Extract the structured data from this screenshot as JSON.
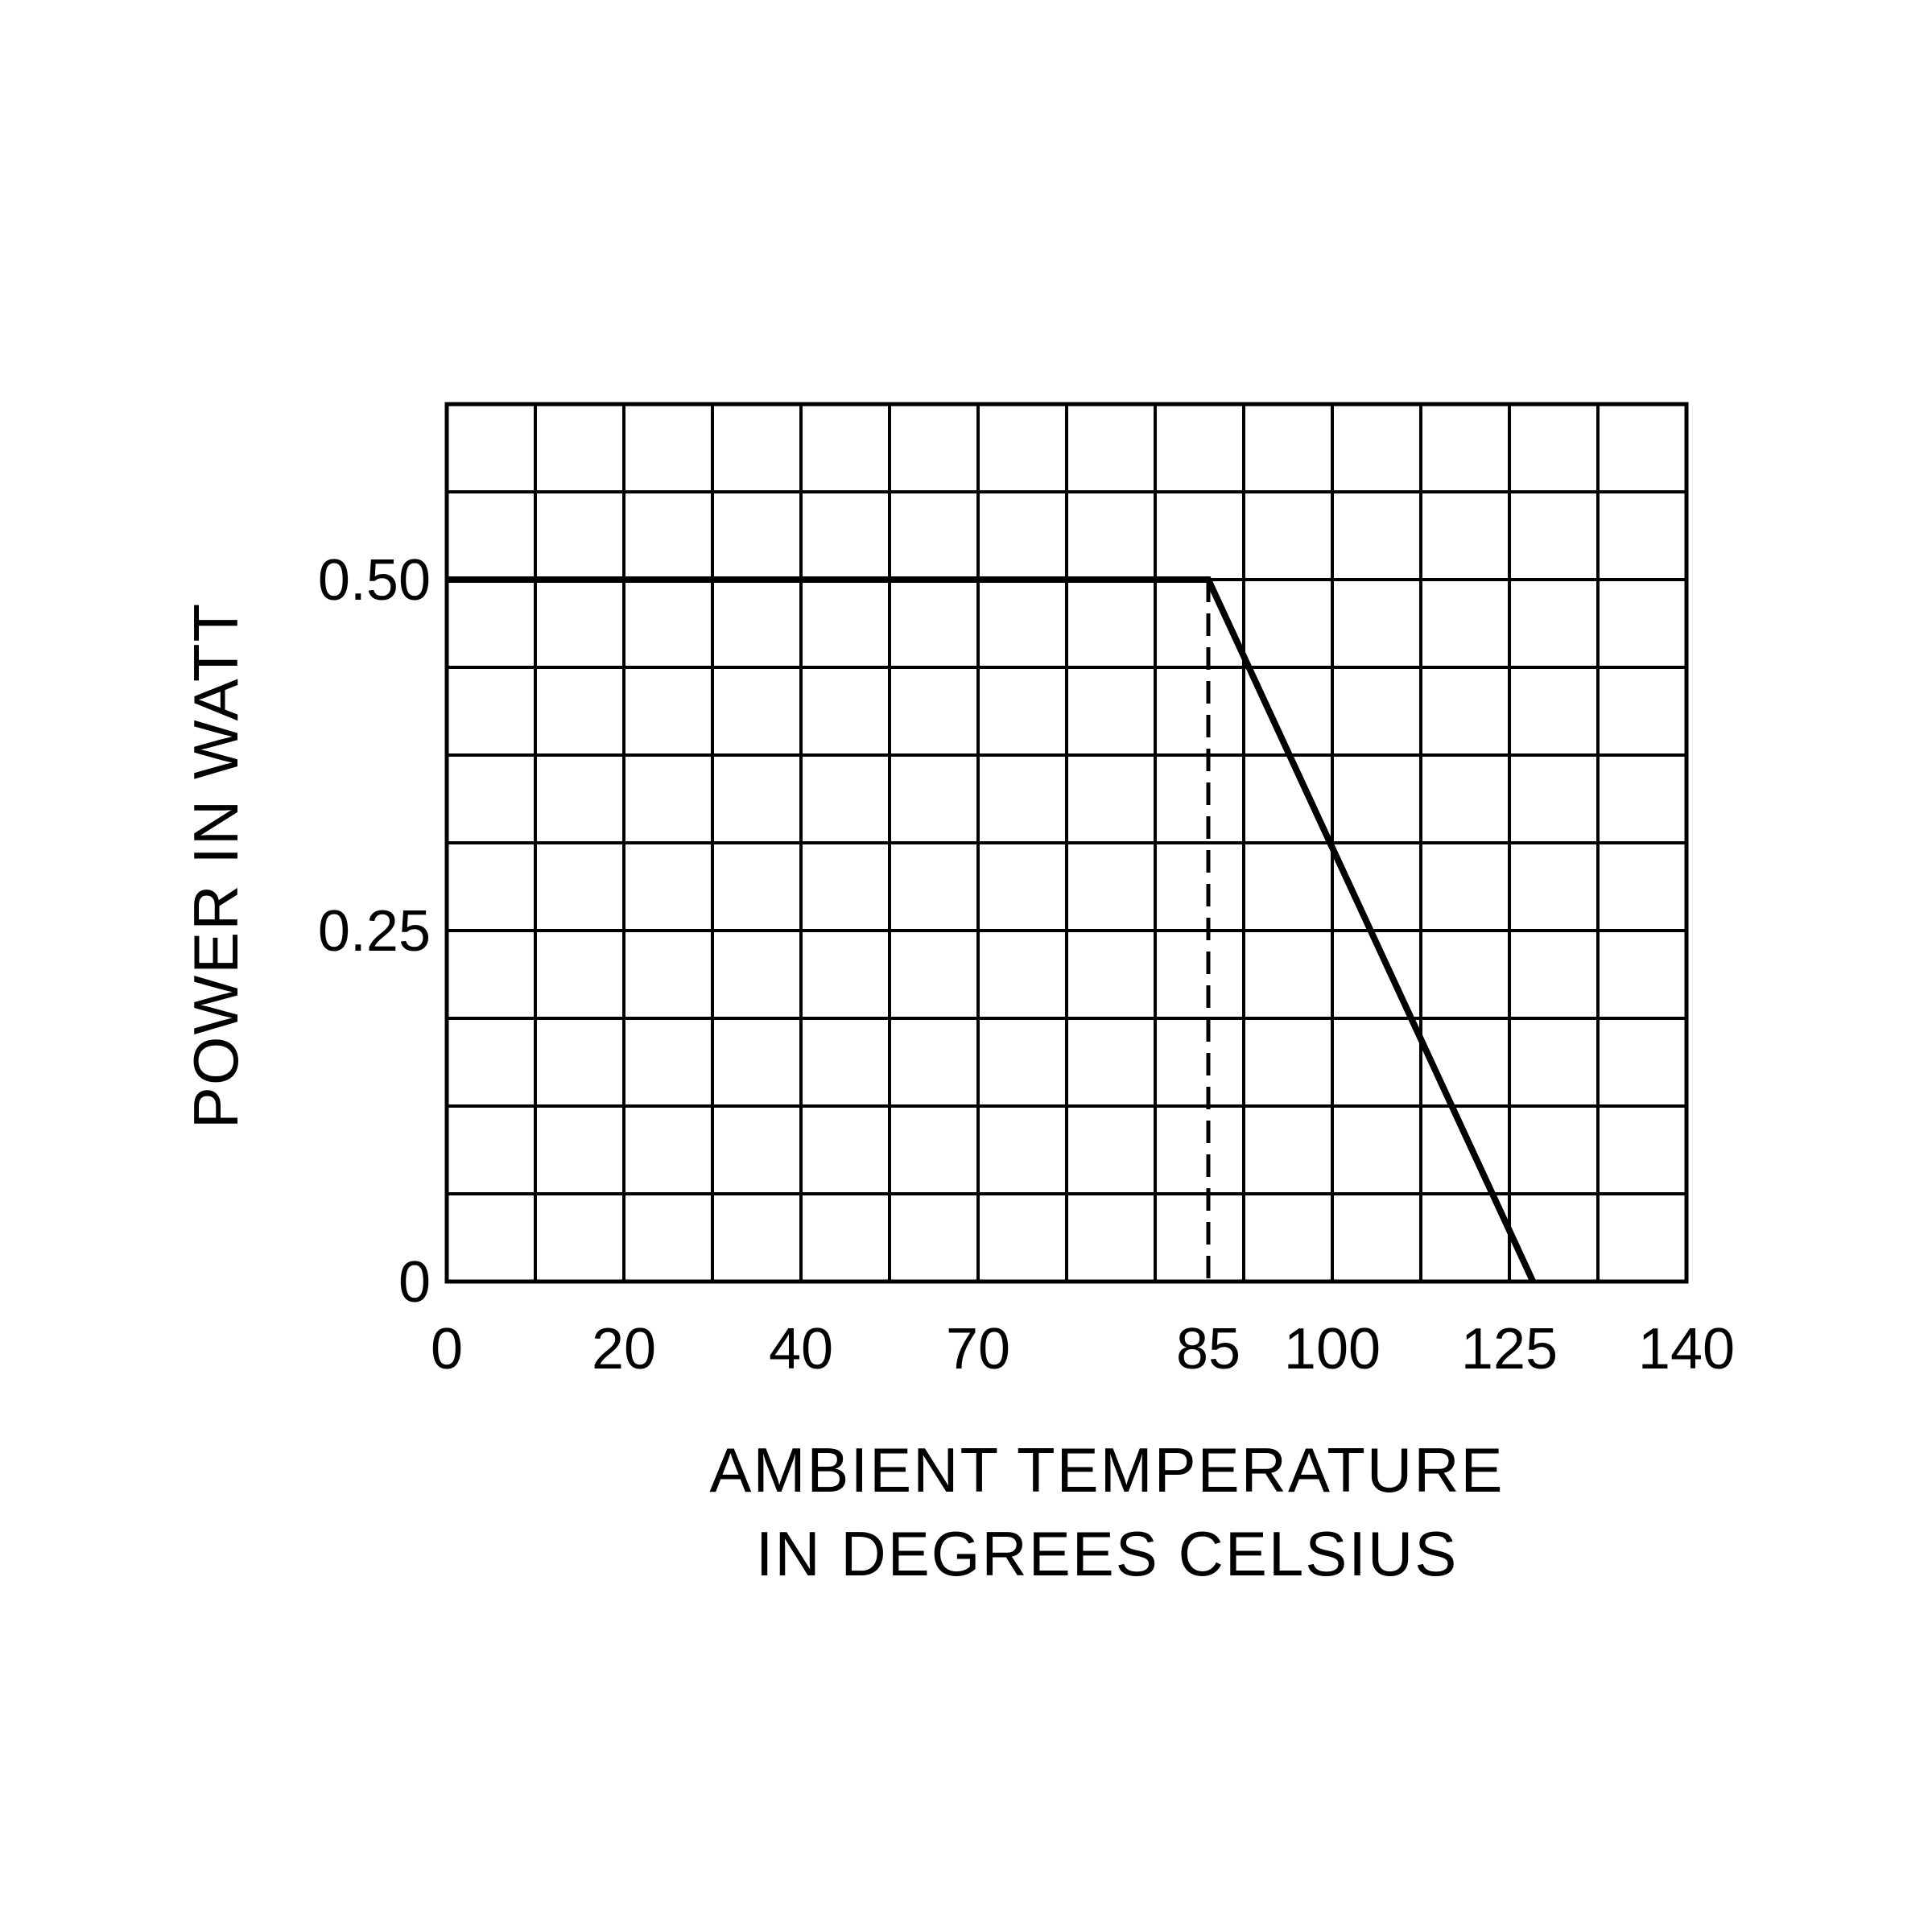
{
  "chart_data": {
    "type": "line",
    "xlabel": [
      "AMBIENT TEMPERATURE",
      "IN DEGREES CELSIUS"
    ],
    "ylabel": "POWER IN WATT",
    "x_tick_labels": [
      "0",
      "20",
      "40",
      "70",
      "85",
      "100",
      "125",
      "140"
    ],
    "y_tick_labels": [
      {
        "value": 0,
        "label": "0"
      },
      {
        "value": 0.25,
        "label": "0.25"
      },
      {
        "value": 0.5,
        "label": "0.50"
      }
    ],
    "ylim": [
      0,
      0.625
    ],
    "grid": true,
    "series": [
      {
        "x": [
          0,
          85,
          127
        ],
        "y": [
          0.5,
          0.5,
          0
        ]
      }
    ],
    "reference_line": {
      "x": 85,
      "style": "dashed"
    }
  },
  "colors": {
    "line": "#000000",
    "grid": "#000000",
    "background": "#ffffff"
  }
}
